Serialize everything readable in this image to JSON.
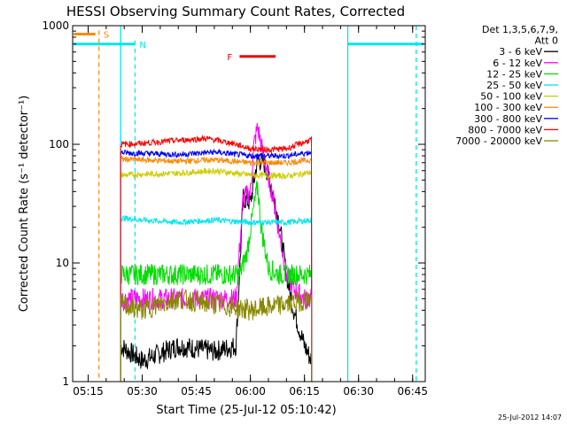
{
  "chart_data": {
    "type": "line",
    "title": "HESSI Observing Summary Count Rates, Corrected",
    "xlabel": "Start Time (25-Jul-12 05:10:42)",
    "ylabel": "Corrected Count Rate (s⁻¹ detector⁻¹)",
    "yscale": "log",
    "ylim": [
      1,
      1000
    ],
    "xlim": [
      "05:10:42",
      "06:48:30"
    ],
    "x_ticks": [
      "05:15",
      "05:30",
      "05:45",
      "06:00",
      "06:15",
      "06:30",
      "06:45"
    ],
    "y_ticks": [
      "1",
      "10",
      "100",
      "1000"
    ],
    "legend_header": [
      "Det 1,3,5,6,7,9,",
      "Att 0"
    ],
    "legend_position": "right",
    "footer_date": "25-Jul-2012 14:07",
    "series": [
      {
        "name": "3 - 6 keV",
        "color": "#000000",
        "x": [
          "05:24",
          "05:30",
          "05:40",
          "05:50",
          "05:56",
          "05:58",
          "06:00",
          "06:02",
          "06:04",
          "06:06",
          "06:08",
          "06:10",
          "06:12",
          "06:15",
          "06:17"
        ],
        "y": [
          2,
          1.5,
          2,
          1.8,
          2,
          35,
          32,
          75,
          68,
          42,
          22,
          8,
          4,
          2,
          1.5
        ]
      },
      {
        "name": "6 - 12 keV",
        "color": "#ff00ff",
        "x": [
          "05:24",
          "05:30",
          "05:40",
          "05:50",
          "05:56",
          "05:58",
          "06:00",
          "06:01",
          "06:02",
          "06:04",
          "06:06",
          "06:08",
          "06:10",
          "06:12",
          "06:15",
          "06:17"
        ],
        "y": [
          5,
          5,
          5,
          5,
          5,
          35,
          40,
          100,
          140,
          70,
          40,
          18,
          8,
          6,
          5,
          5
        ]
      },
      {
        "name": "12 - 25 keV",
        "color": "#00dd00",
        "x": [
          "05:24",
          "05:30",
          "05:40",
          "05:50",
          "05:57",
          "05:59",
          "06:01",
          "06:02",
          "06:03",
          "06:05",
          "06:08",
          "06:12",
          "06:17"
        ],
        "y": [
          8,
          8,
          8,
          8,
          8,
          12,
          30,
          45,
          20,
          9,
          8,
          8,
          8
        ]
      },
      {
        "name": "25 - 50 keV",
        "color": "#00e5ee",
        "x": [
          "05:24",
          "05:30",
          "05:40",
          "05:50",
          "06:00",
          "06:10",
          "06:17"
        ],
        "y": [
          24,
          23,
          22,
          23,
          22,
          22,
          23
        ]
      },
      {
        "name": "50 - 100 keV",
        "color": "#cccc00",
        "x": [
          "05:24",
          "05:30",
          "05:40",
          "05:50",
          "06:00",
          "06:10",
          "06:17"
        ],
        "y": [
          55,
          56,
          57,
          60,
          55,
          54,
          58
        ]
      },
      {
        "name": "100 - 300 keV",
        "color": "#ff8800",
        "x": [
          "05:24",
          "05:30",
          "05:40",
          "05:50",
          "06:00",
          "06:10",
          "06:17"
        ],
        "y": [
          75,
          74,
          72,
          74,
          70,
          70,
          74
        ]
      },
      {
        "name": "300 - 800 keV",
        "color": "#0000ff",
        "x": [
          "05:24",
          "05:30",
          "05:40",
          "05:50",
          "06:00",
          "06:10",
          "06:17"
        ],
        "y": [
          85,
          84,
          82,
          86,
          80,
          80,
          86
        ]
      },
      {
        "name": "800 - 7000 keV",
        "color": "#ff0000",
        "x": [
          "05:24",
          "05:30",
          "05:40",
          "05:48",
          "05:55",
          "06:00",
          "06:05",
          "06:10",
          "06:17"
        ],
        "y": [
          100,
          102,
          108,
          112,
          102,
          92,
          90,
          92,
          110
        ]
      },
      {
        "name": "7000 - 20000 keV",
        "color": "#888800",
        "x": [
          "05:24",
          "05:30",
          "05:40",
          "05:50",
          "06:00",
          "06:10",
          "06:17"
        ],
        "y": [
          4.5,
          4,
          5,
          4.5,
          4,
          4.5,
          5
        ]
      }
    ],
    "annotations": [
      {
        "label": "S",
        "color": "#ff8800",
        "bar_x": [
          "05:11",
          "05:17"
        ],
        "bar_y": 850,
        "line_x": "05:18",
        "line_style": "dashed"
      },
      {
        "label": "N",
        "color": "#00e5ee",
        "bar_x": [
          "05:11",
          "05:28"
        ],
        "bar_y": 700,
        "line_x": "05:28",
        "line_style": "dashed"
      },
      {
        "label": "F",
        "color": "#ee0000",
        "bar_x": [
          "05:57",
          "06:07"
        ],
        "bar_y": 550
      }
    ],
    "night_boundaries": [
      {
        "color": "#00e5ee",
        "x": "05:24",
        "style": "solid"
      },
      {
        "color": "#00e5ee",
        "x": "06:27",
        "style": "solid"
      },
      {
        "color": "#00e5ee",
        "x": "06:46",
        "style": "dashed"
      }
    ],
    "night_bar": {
      "color": "#00e5ee",
      "x": [
        "06:27",
        "06:48"
      ],
      "y": 700
    }
  }
}
